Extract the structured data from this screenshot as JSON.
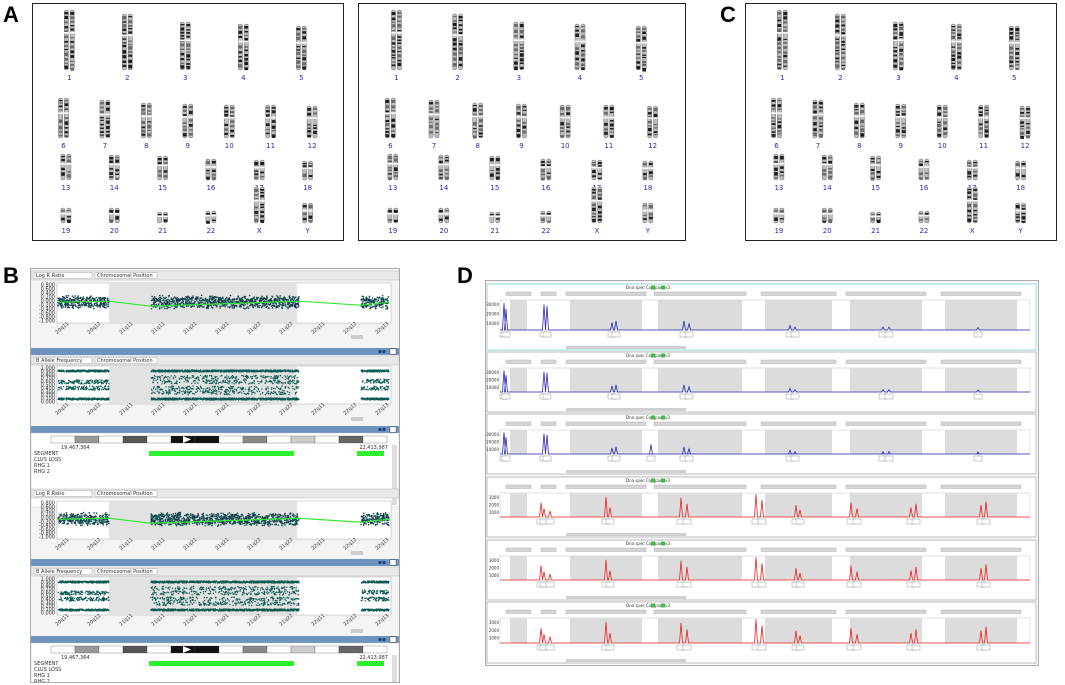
{
  "panel_labels": {
    "a": "A",
    "c": "C",
    "b": "B",
    "d": "D"
  },
  "karyotype": {
    "rows": [
      [
        "1",
        "2",
        "3",
        "4",
        "5"
      ],
      [
        "6",
        "7",
        "8",
        "9",
        "10",
        "11",
        "12"
      ],
      [
        "13",
        "14",
        "15",
        "16",
        "17",
        "18"
      ],
      [
        "19",
        "20",
        "21",
        "22",
        "X",
        "Y"
      ]
    ]
  },
  "snp_panel": {
    "track_lrr": {
      "dropdown": "Log R Ratio",
      "position_dropdown": "Chromosomal Position"
    },
    "track_baf": {
      "dropdown": "B Allele Frequency",
      "position_dropdown": "Chromosomal Position"
    },
    "lrr_ticks": [
      "0.800",
      "0.600",
      "0.400",
      "0.200",
      "0.000",
      "-0.200",
      "-0.400",
      "-0.600",
      "-0.800",
      "-1.000"
    ],
    "baf_ticks": [
      "1.000",
      "0.900",
      "0.800",
      "0.700",
      "0.600",
      "0.500",
      "0.400",
      "0.300",
      "0.200",
      "0.100",
      "0.000"
    ],
    "x_ticks": [
      "20q11",
      "20q12",
      "21q11",
      "21q11",
      "21q21",
      "21q21",
      "21q22",
      "21q22",
      "22q11",
      "22q12",
      "22q13"
    ],
    "ideogram_start": "19,467,364",
    "ideogram_end": "22,413,987",
    "ideogram_rows": [
      "SEGMENT",
      "CLUS LOSS",
      "RHG 1",
      "RHG 2"
    ]
  },
  "frag_panel": {
    "window_title": "Dna spec Compact v3",
    "rfu_ticks_blue": [
      "30000",
      "20000",
      "10000"
    ],
    "rfu_ticks_red": [
      "3000",
      "2000",
      "1000"
    ]
  }
}
